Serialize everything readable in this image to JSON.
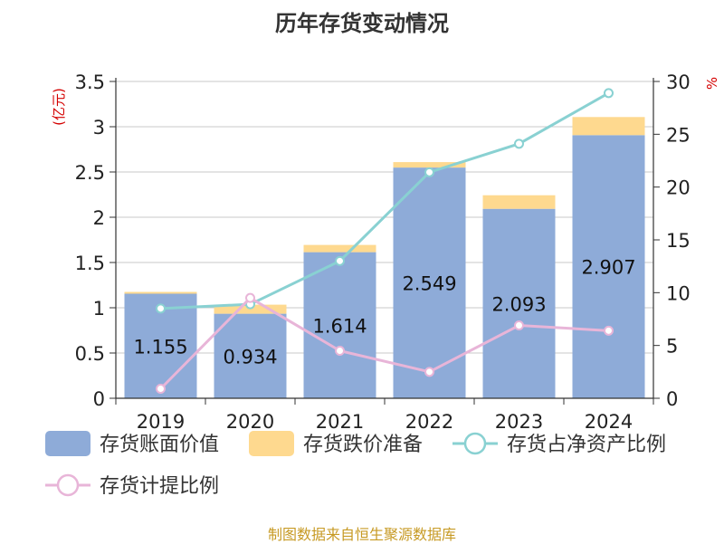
{
  "chart_data": {
    "type": "bar",
    "title": "历年存货变动情况",
    "categories": [
      "2019",
      "2020",
      "2021",
      "2022",
      "2023",
      "2024"
    ],
    "left_axis": {
      "unit": "(亿元)",
      "ylim": [
        0,
        3.5
      ],
      "ticks": [
        "0",
        "0.5",
        "1",
        "1.5",
        "2",
        "2.5",
        "3",
        "3.5"
      ]
    },
    "right_axis": {
      "unit": "%",
      "ylim": [
        0,
        30
      ],
      "ticks": [
        "0",
        "5",
        "10",
        "15",
        "20",
        "25",
        "30"
      ]
    },
    "series": [
      {
        "name": "存货账面价值",
        "kind": "stacked-bar",
        "axis": "left",
        "color": "#8eabd8",
        "values": [
          1.155,
          0.934,
          1.614,
          2.549,
          2.093,
          2.907
        ],
        "labels": [
          "1.155",
          "0.934",
          "1.614",
          "2.549",
          "2.093",
          "2.907"
        ]
      },
      {
        "name": "存货跌价准备",
        "kind": "stacked-bar",
        "axis": "left",
        "color": "#fed98f",
        "values": [
          0.02,
          0.1,
          0.08,
          0.06,
          0.15,
          0.2
        ]
      },
      {
        "name": "存货占净资产比例",
        "kind": "line",
        "axis": "right",
        "color": "#89d1d2",
        "values": [
          8.5,
          8.9,
          13.0,
          21.4,
          24.1,
          28.9
        ]
      },
      {
        "name": "存货计提比例",
        "kind": "line",
        "axis": "right",
        "color": "#e8b5d8",
        "values": [
          0.9,
          9.5,
          4.5,
          2.5,
          6.9,
          6.4
        ]
      }
    ],
    "grid": true,
    "legend_position": "bottom"
  },
  "source": "制图数据来自恒生聚源数据库"
}
